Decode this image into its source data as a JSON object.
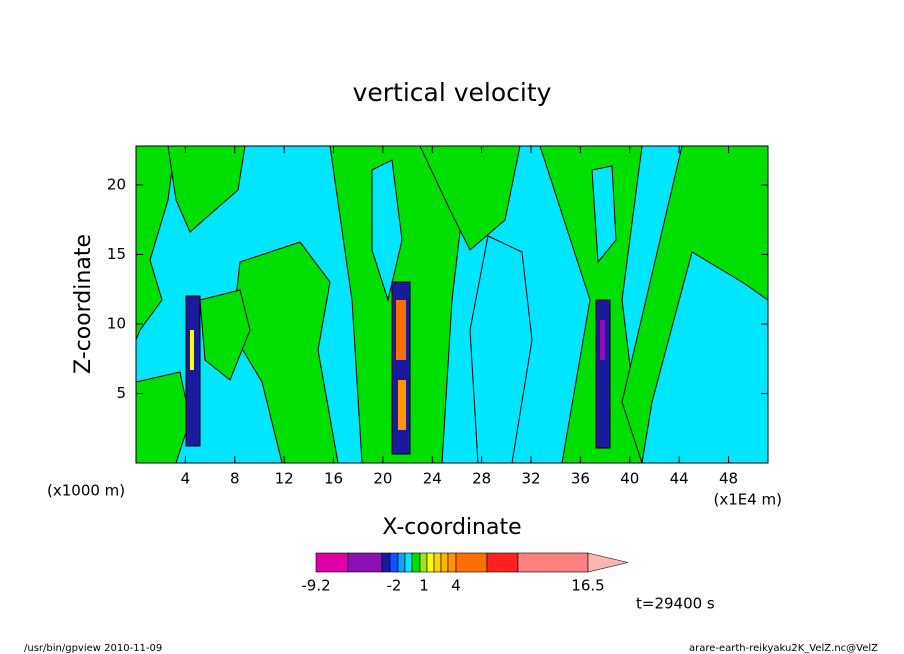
{
  "chart_data": {
    "type": "contour",
    "title": "vertical velocity",
    "xlabel": "X-coordinate",
    "ylabel": "Z-coordinate",
    "xunit_left": "(x1000 m)",
    "xunit_right": "(x1E4 m)",
    "xlim": [
      0,
      51.2
    ],
    "ylim": [
      0,
      22.8
    ],
    "xticks": [
      4,
      8,
      12,
      16,
      20,
      24,
      28,
      32,
      36,
      40,
      44,
      48
    ],
    "yticks": [
      5,
      10,
      15,
      20
    ],
    "colorbar": {
      "colors": [
        "#e000a8",
        "#8c10b4",
        "#1a1a9c",
        "#1450ff",
        "#14a0ff",
        "#00e6ff",
        "#00e000",
        "#a0e614",
        "#ffff00",
        "#ffd200",
        "#ffb400",
        "#ff9600",
        "#ff6e00",
        "#ff2020",
        "#ff8080",
        "#ffb4b4"
      ],
      "ticks": [
        -9.2,
        -2,
        1,
        4,
        16.5
      ]
    },
    "annotation": "t=29400 s",
    "footer_left": "/usr/bin/gpview  2010-11-09",
    "footer_right": "arare-earth-reikyaku2K_VelZ.nc@VelZ"
  }
}
